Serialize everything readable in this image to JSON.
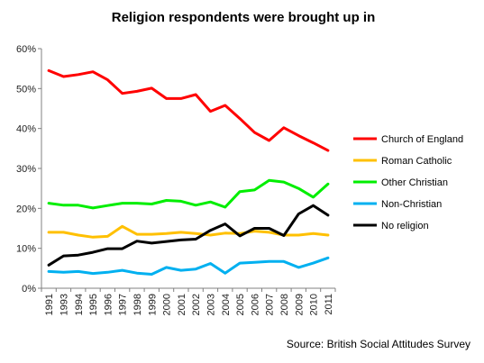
{
  "chart_data": {
    "type": "line",
    "title": "Religion respondents were brought up in",
    "source": "Source: British Social Attitudes Survey",
    "x": [
      "1991",
      "1993",
      "1994",
      "1995",
      "1996",
      "1997",
      "1998",
      "1999",
      "2000",
      "2001",
      "2002",
      "2003",
      "2004",
      "2005",
      "2006",
      "2007",
      "2008",
      "2009",
      "2010",
      "2011"
    ],
    "ylim": [
      0,
      60
    ],
    "yticks": [
      "0%",
      "10%",
      "20%",
      "30%",
      "40%",
      "50%",
      "60%"
    ],
    "grid": false,
    "legend": "right",
    "series": [
      {
        "name": "Church of England",
        "color": "#ff0000",
        "values": [
          54.5,
          53.0,
          53.5,
          54.2,
          52.2,
          48.8,
          49.3,
          50.1,
          47.5,
          47.5,
          48.5,
          44.3,
          45.8,
          42.5,
          39.0,
          37.0,
          40.2,
          38.2,
          36.4,
          34.5
        ]
      },
      {
        "name": "Roman Catholic",
        "color": "#ffc000",
        "values": [
          14.0,
          14.0,
          13.3,
          12.8,
          13.0,
          15.5,
          13.5,
          13.5,
          13.7,
          14.0,
          13.7,
          13.3,
          13.8,
          13.7,
          14.3,
          14.0,
          13.3,
          13.3,
          13.7,
          13.3
        ]
      },
      {
        "name": "Other Christian",
        "color": "#00ee00",
        "values": [
          21.3,
          20.8,
          20.8,
          20.1,
          20.7,
          21.3,
          21.3,
          21.1,
          22.0,
          21.8,
          20.8,
          21.6,
          20.3,
          24.2,
          24.6,
          27.0,
          26.6,
          25.0,
          22.8,
          26.1
        ]
      },
      {
        "name": "Non-Christian",
        "color": "#00b0f0",
        "values": [
          4.2,
          4.0,
          4.2,
          3.7,
          4.0,
          4.5,
          3.8,
          3.5,
          5.2,
          4.5,
          4.8,
          6.2,
          3.8,
          6.3,
          6.5,
          6.7,
          6.7,
          5.2,
          6.3,
          7.6
        ]
      },
      {
        "name": "No religion",
        "color": "#000000",
        "values": [
          5.8,
          8.1,
          8.3,
          9.0,
          9.9,
          9.9,
          11.8,
          11.3,
          11.7,
          12.1,
          12.3,
          14.5,
          16.1,
          13.1,
          15.0,
          15.0,
          13.2,
          18.6,
          20.7,
          18.3
        ]
      }
    ]
  }
}
